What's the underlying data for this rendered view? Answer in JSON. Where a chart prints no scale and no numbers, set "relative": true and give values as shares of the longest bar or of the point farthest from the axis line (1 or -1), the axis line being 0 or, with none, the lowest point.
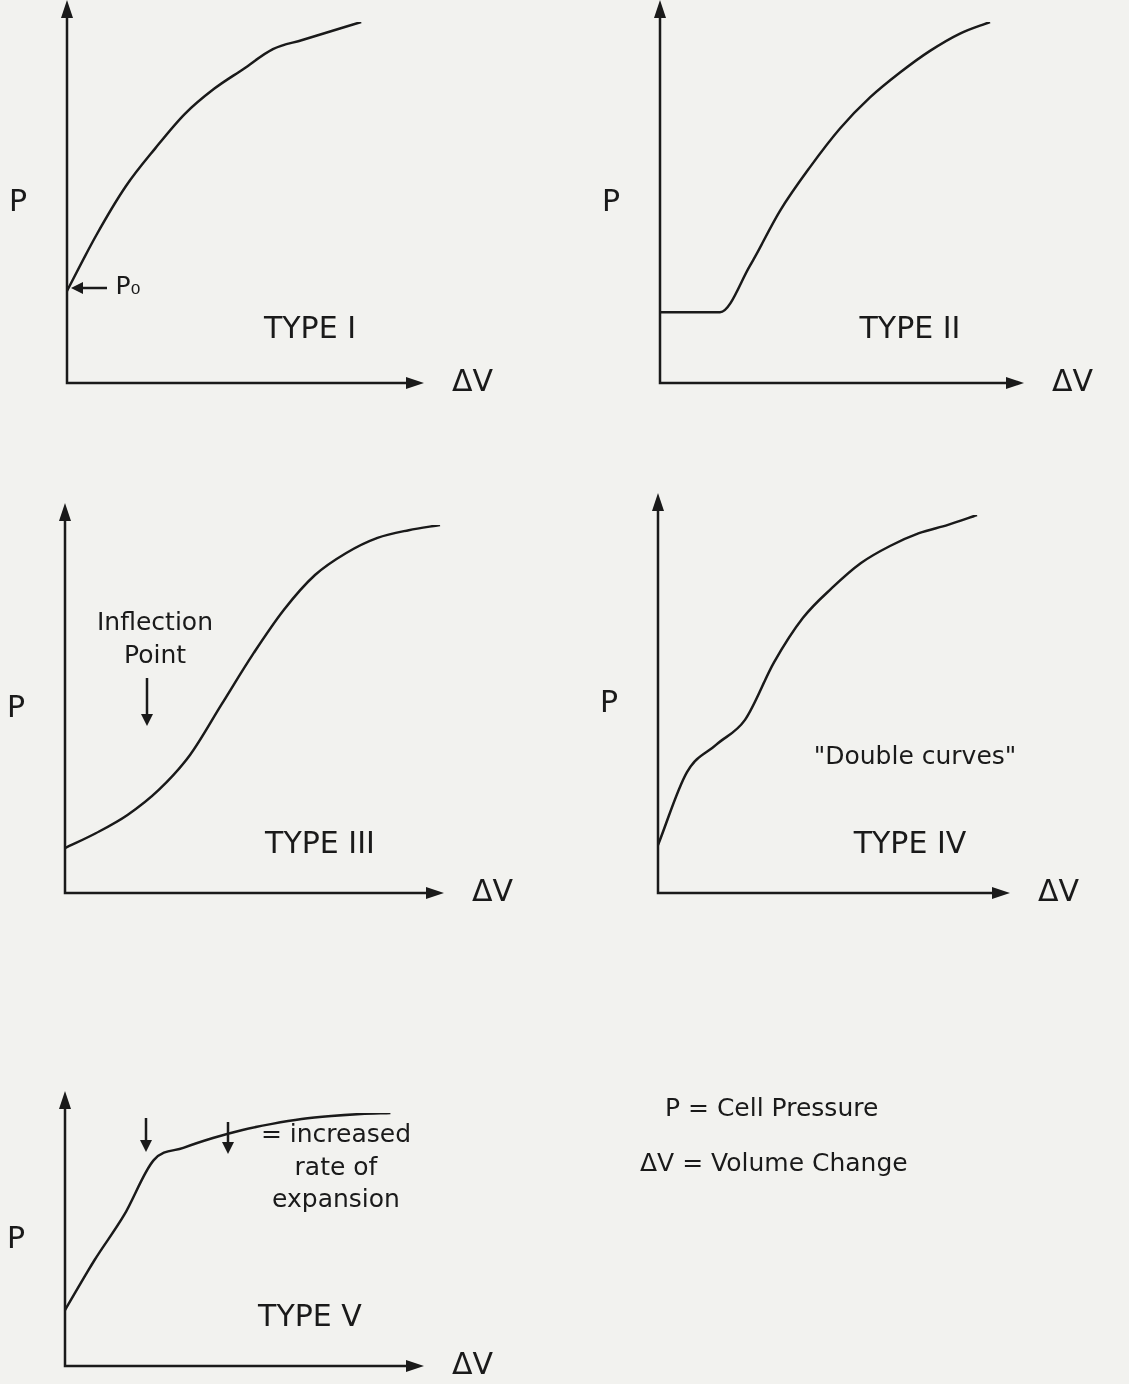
{
  "chart_data": [
    {
      "type": "line",
      "relative": true,
      "xlabel": "ΔV",
      "ylabel": "P",
      "tick_labels": false,
      "marker": "none",
      "color": "#1a1a1a",
      "categories": [
        null,
        null,
        null,
        null,
        null,
        null,
        null,
        null,
        null,
        null,
        null,
        null,
        null
      ],
      "values": [
        0.255,
        0.41,
        0.545,
        0.65,
        0.745,
        0.815,
        0.87,
        0.925,
        0.95,
        0.975,
        1,
        null,
        null
      ],
      "annotations": [
        "P₀",
        "TYPE I"
      ]
    },
    {
      "type": "line",
      "relative": true,
      "xlabel": "ΔV",
      "ylabel": "P",
      "tick_labels": false,
      "marker": "none",
      "color": "#1a1a1a",
      "categories": [
        null,
        null,
        null,
        null,
        null,
        null,
        null,
        null,
        null,
        null,
        null,
        null,
        null
      ],
      "values": [
        0.196,
        0.196,
        0.196,
        0.325,
        0.477,
        0.598,
        0.705,
        0.791,
        0.86,
        0.92,
        0.968,
        1,
        null
      ],
      "annotations": [
        "TYPE II"
      ]
    },
    {
      "type": "line",
      "relative": true,
      "xlabel": "ΔV",
      "ylabel": "P",
      "tick_labels": false,
      "marker": "none",
      "color": "#1a1a1a",
      "categories": [
        null,
        null,
        null,
        null,
        null,
        null,
        null,
        null,
        null,
        null,
        null,
        null,
        null
      ],
      "values": [
        0.122,
        0.163,
        0.212,
        0.28,
        0.375,
        0.511,
        0.647,
        0.769,
        0.864,
        0.924,
        0.965,
        0.986,
        1
      ],
      "annotations": [
        "Inflection Point",
        "TYPE III"
      ]
    },
    {
      "type": "line",
      "relative": true,
      "xlabel": "ΔV",
      "ylabel": "P",
      "tick_labels": false,
      "marker": "none",
      "color": "#1a1a1a",
      "categories": [
        null,
        null,
        null,
        null,
        null,
        null,
        null,
        null,
        null,
        null,
        null,
        null,
        null
      ],
      "values": [
        0.127,
        0.32,
        0.392,
        0.458,
        0.61,
        0.728,
        0.807,
        0.873,
        0.918,
        0.952,
        0.974,
        1,
        null
      ],
      "annotations": [
        "\"Double curves\"",
        "TYPE IV"
      ]
    },
    {
      "type": "line",
      "relative": true,
      "xlabel": "ΔV",
      "ylabel": "P",
      "tick_labels": false,
      "marker": "none",
      "color": "#1a1a1a",
      "categories": [
        null,
        null,
        null,
        null,
        null,
        null,
        null,
        null,
        null,
        null,
        null,
        null,
        null
      ],
      "values": [
        0.221,
        0.419,
        0.597,
        0.814,
        0.862,
        0.901,
        0.933,
        0.957,
        0.976,
        0.988,
        0.996,
        1,
        null
      ],
      "annotations": [
        "= increased rate of expansion",
        "TYPE V"
      ]
    },
    {
      "type": "other",
      "annotations": [
        "P = Cell Pressure",
        "ΔV = Volume Change"
      ]
    }
  ]
}
